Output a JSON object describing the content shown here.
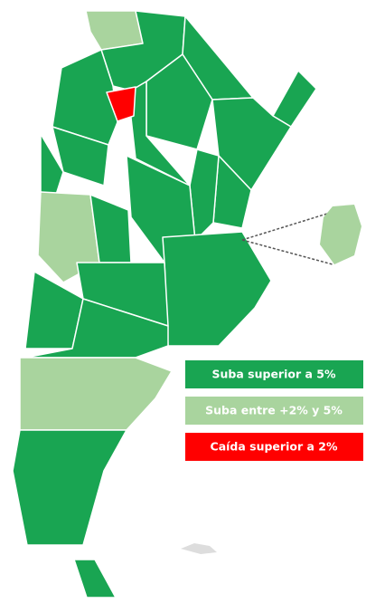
{
  "legend": [
    {
      "label": "Suba superior a 5%",
      "color": "#19a552"
    },
    {
      "label": "Suba entre +2% y 5%",
      "color": "#a9d49e"
    },
    {
      "label": "Caída superior a 2%",
      "color": "#ff0000"
    }
  ]
}
